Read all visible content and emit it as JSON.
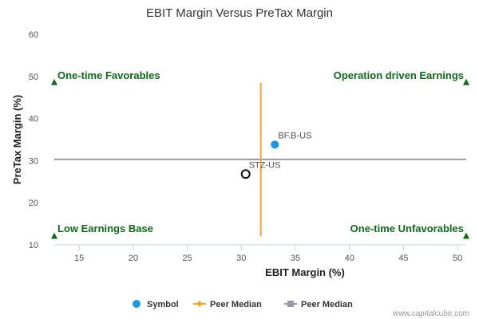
{
  "chart_data": {
    "type": "scatter",
    "title": "EBIT Margin Versus PreTax Margin",
    "xlabel": "EBIT Margin (%)",
    "ylabel": "PreTax Margin (%)",
    "xlim": [
      12.7,
      50.8
    ],
    "ylim": [
      10,
      60
    ],
    "xticks": [
      15,
      20,
      25,
      30,
      35,
      40,
      45,
      50
    ],
    "yticks": [
      10,
      20,
      30,
      40,
      50,
      60
    ],
    "points": [
      {
        "label": "BF.B-US",
        "x": 33.1,
        "y": 33.8,
        "color": "#1a98e8",
        "filled": true
      },
      {
        "label": "STZ-US",
        "x": 30.4,
        "y": 26.8,
        "color": "#111111",
        "filled": false
      }
    ],
    "reference_lines": {
      "x_median": {
        "value": 31.8,
        "y_range": [
          12,
          48.5
        ],
        "color": "#f5a623"
      },
      "y_median": {
        "value": 30.3,
        "x_range": [
          12.7,
          50.8
        ],
        "color": "#9a98aa"
      }
    },
    "quadrants": [
      {
        "label": "One-time Favorables",
        "position": "top-left",
        "marker_x": 12.7,
        "marker_y": 48.5,
        "marker_color": "#0f6b1b"
      },
      {
        "label": "Operation driven Earnings",
        "position": "top-right",
        "marker_x": 50.8,
        "marker_y": 48.5,
        "marker_color": "#0f6b1b"
      },
      {
        "label": "Low Earnings Base",
        "position": "bottom-left",
        "marker_x": 12.7,
        "marker_y": 12,
        "marker_color": "#0f6b1b"
      },
      {
        "label": "One-time Unfavorables",
        "position": "bottom-right",
        "marker_x": 50.8,
        "marker_y": 12,
        "marker_color": "#0f6b1b"
      }
    ],
    "legend": [
      {
        "label": "Symbol",
        "marker": "circle",
        "color": "#1a98e8"
      },
      {
        "label": "Peer Median",
        "marker": "diamond-line",
        "color": "#f5a623"
      },
      {
        "label": "Peer Median",
        "marker": "square-line",
        "color": "#9a98aa"
      }
    ],
    "footer": "www.capitalcube.com"
  }
}
